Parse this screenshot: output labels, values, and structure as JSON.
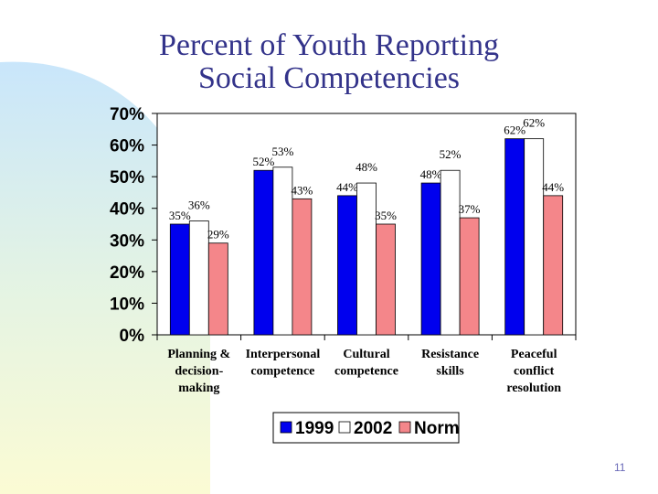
{
  "slide": {
    "title_line1": "Percent of Youth Reporting",
    "title_line2": "Social Competencies",
    "page_number": "11"
  },
  "colors": {
    "series_1999": "#0000ee",
    "series_2002": "#ffffff",
    "series_norm": "#f4868a",
    "title": "#33338a"
  },
  "chart_data": {
    "type": "bar",
    "title": "Percent of Youth Reporting Social Competencies",
    "xlabel": "",
    "ylabel": "",
    "ylim": [
      0,
      70
    ],
    "yticks": [
      0,
      10,
      20,
      30,
      40,
      50,
      60,
      70
    ],
    "ytick_labels": [
      "0%",
      "10%",
      "20%",
      "30%",
      "40%",
      "50%",
      "60%",
      "70%"
    ],
    "categories": [
      [
        "Planning &",
        "decision-",
        "making"
      ],
      [
        "Interpersonal",
        "competence"
      ],
      [
        "Cultural",
        "competence"
      ],
      [
        "Resistance",
        "skills"
      ],
      [
        "Peaceful",
        "conflict",
        "resolution"
      ]
    ],
    "series": [
      {
        "name": "1999",
        "color": "#0000ee",
        "values": [
          35,
          52,
          44,
          48,
          62
        ],
        "labels": [
          "35%",
          "52%",
          "44%",
          "48%",
          "62%"
        ]
      },
      {
        "name": "2002",
        "color": "#ffffff",
        "values": [
          36,
          53,
          48,
          52,
          62
        ],
        "labels": [
          "36%",
          "53%",
          "48%",
          "52%",
          "62%"
        ]
      },
      {
        "name": "Norm",
        "color": "#f4868a",
        "values": [
          29,
          43,
          35,
          37,
          44
        ],
        "labels": [
          "29%",
          "43%",
          "35%",
          "37%",
          "44%"
        ]
      }
    ],
    "legend_position": "bottom"
  }
}
